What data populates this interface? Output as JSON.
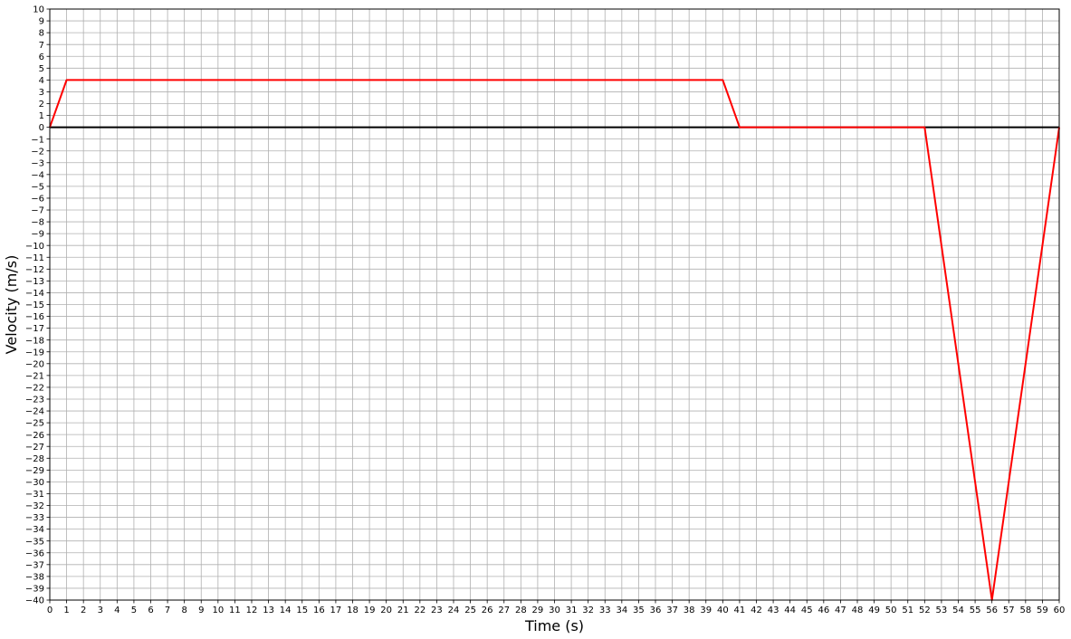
{
  "chart_data": {
    "type": "line",
    "title": "",
    "xlabel": "Time (s)",
    "ylabel": "Velocity (m/s)",
    "xlim": [
      0,
      60
    ],
    "ylim": [
      -40,
      10
    ],
    "x_tick_step": 1,
    "y_tick_step": 1,
    "grid": true,
    "series": [
      {
        "color": "#ff0000",
        "x": [
          0,
          1,
          40,
          41,
          52,
          56,
          60
        ],
        "y": [
          0,
          4,
          4,
          0,
          0,
          -40,
          0
        ]
      }
    ],
    "reference_lines": [
      {
        "axis": "y",
        "value": 0,
        "color": "#000000"
      }
    ],
    "colors": {
      "grid": "#b0b0b0",
      "axes": "#000000"
    }
  }
}
